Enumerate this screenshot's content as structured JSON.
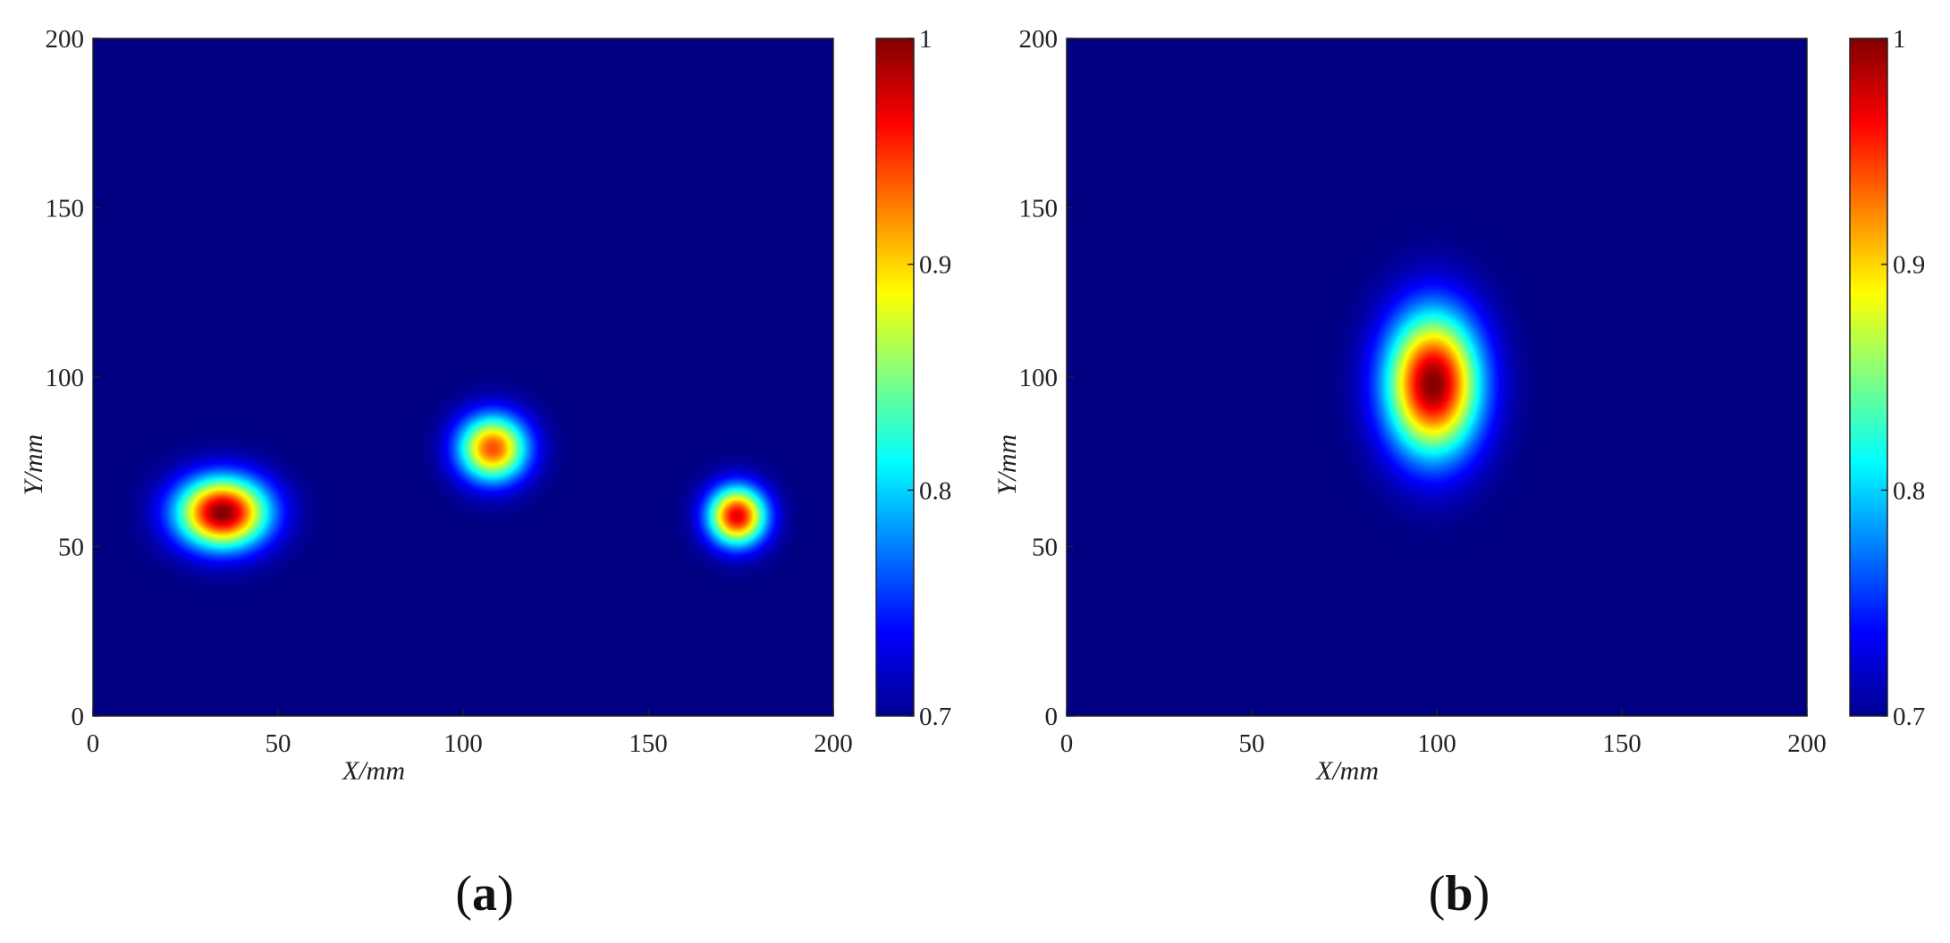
{
  "chart_data": [
    {
      "type": "heatmap",
      "panel_label": "a",
      "xlabel": "X/mm",
      "ylabel": "Y/mm",
      "xlim": [
        0,
        200
      ],
      "ylim": [
        0,
        200
      ],
      "xticks": [
        0,
        50,
        100,
        150,
        200
      ],
      "yticks": [
        0,
        50,
        100,
        150,
        200
      ],
      "colorbar": {
        "min": 0.7,
        "max": 1,
        "ticks": [
          0.7,
          0.8,
          0.9,
          1
        ],
        "tick_labels": [
          "0.7",
          "0.8",
          "0.9",
          "1"
        ],
        "colormap": "jet",
        "background_value": 0.7
      },
      "hotspots": [
        {
          "x": 35,
          "y": 60,
          "sigma_x": 8.5,
          "sigma_y": 7.2,
          "peak": 1.0
        },
        {
          "x": 108,
          "y": 79,
          "sigma_x": 6.5,
          "sigma_y": 6.8,
          "peak": 0.94
        },
        {
          "x": 174,
          "y": 59,
          "sigma_x": 5.4,
          "sigma_y": 6.0,
          "peak": 0.97
        }
      ]
    },
    {
      "type": "heatmap",
      "panel_label": "b",
      "xlabel": "X/mm",
      "ylabel": "Y/mm",
      "xlim": [
        0,
        200
      ],
      "ylim": [
        0,
        200
      ],
      "xticks": [
        0,
        50,
        100,
        150,
        200
      ],
      "yticks": [
        0,
        50,
        100,
        150,
        200
      ],
      "colorbar": {
        "min": 0.7,
        "max": 1,
        "ticks": [
          0.7,
          0.8,
          0.9,
          1
        ],
        "tick_labels": [
          "0.7",
          "0.8",
          "0.9",
          "1"
        ],
        "colormap": "jet",
        "background_value": 0.7
      },
      "hotspots": [
        {
          "x": 99,
          "y": 98,
          "sigma_x": 8.8,
          "sigma_y": 14.5,
          "peak": 1.0
        }
      ]
    }
  ]
}
